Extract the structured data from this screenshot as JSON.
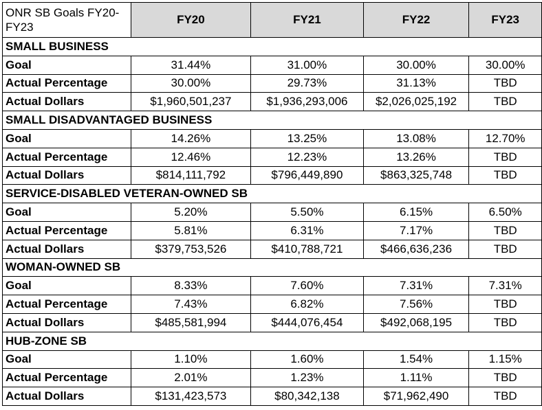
{
  "table": {
    "title": "ONR SB Goals FY20-FY23",
    "years": [
      "FY20",
      "FY21",
      "FY22",
      "FY23"
    ],
    "sections": [
      {
        "name": "SMALL BUSINESS",
        "rows": [
          {
            "label": "Goal",
            "values": [
              "31.44%",
              "31.00%",
              "30.00%",
              "30.00%"
            ]
          },
          {
            "label": "Actual Percentage",
            "values": [
              "30.00%",
              "29.73%",
              "31.13%",
              "TBD"
            ]
          },
          {
            "label": "Actual Dollars",
            "values": [
              "$1,960,501,237",
              "$1,936,293,006",
              "$2,026,025,192",
              "TBD"
            ]
          }
        ]
      },
      {
        "name": "SMALL DISADVANTAGED BUSINESS",
        "rows": [
          {
            "label": "Goal",
            "values": [
              "14.26%",
              "13.25%",
              "13.08%",
              "12.70%"
            ]
          },
          {
            "label": "Actual Percentage",
            "values": [
              "12.46%",
              "12.23%",
              "13.26%",
              "TBD"
            ]
          },
          {
            "label": "Actual Dollars",
            "values": [
              "$814,111,792",
              "$796,449,890",
              "$863,325,748",
              "TBD"
            ]
          }
        ]
      },
      {
        "name": "SERVICE-DISABLED VETERAN-OWNED SB",
        "rows": [
          {
            "label": "Goal",
            "values": [
              "5.20%",
              "5.50%",
              "6.15%",
              "6.50%"
            ]
          },
          {
            "label": "Actual Percentage",
            "values": [
              "5.81%",
              "6.31%",
              "7.17%",
              "TBD"
            ]
          },
          {
            "label": "Actual Dollars",
            "values": [
              "$379,753,526",
              "$410,788,721",
              "$466,636,236",
              "TBD"
            ]
          }
        ]
      },
      {
        "name": "WOMAN-OWNED SB",
        "rows": [
          {
            "label": "Goal",
            "values": [
              "8.33%",
              "7.60%",
              "7.31%",
              "7.31%"
            ]
          },
          {
            "label": "Actual Percentage",
            "values": [
              "7.43%",
              "6.82%",
              "7.56%",
              "TBD"
            ]
          },
          {
            "label": "Actual Dollars",
            "values": [
              "$485,581,994",
              "$444,076,454",
              "$492,068,195",
              "TBD"
            ]
          }
        ]
      },
      {
        "name": "HUB-ZONE SB",
        "rows": [
          {
            "label": "Goal",
            "values": [
              "1.10%",
              "1.60%",
              "1.54%",
              "1.15%"
            ]
          },
          {
            "label": "Actual Percentage",
            "values": [
              "2.01%",
              "1.23%",
              "1.11%",
              "TBD"
            ]
          },
          {
            "label": "Actual Dollars",
            "values": [
              "$131,423,573",
              "$80,342,138",
              "$71,962,490",
              "TBD"
            ]
          }
        ]
      }
    ]
  }
}
